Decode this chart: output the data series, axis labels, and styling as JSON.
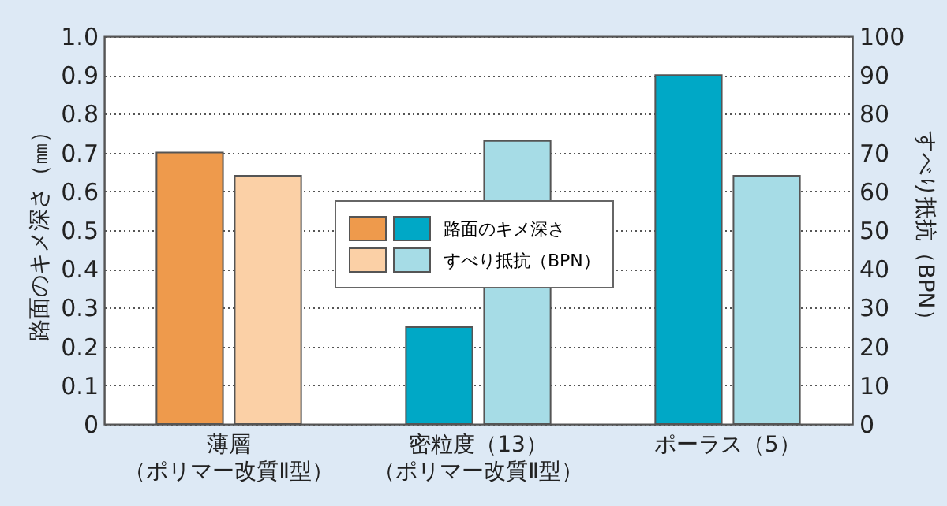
{
  "chart_data": {
    "type": "bar",
    "categories": [
      "薄層（ポリマー改質Ⅱ型）",
      "密粒度（13）（ポリマー改質Ⅱ型）",
      "ポーラス（5）"
    ],
    "ylabel": "路面のキメ深さ（㎜）",
    "y2label": "すべり抵抗（BPN）",
    "series": [
      {
        "name": "路面のキメ深さ",
        "colors": [
          "#ee9a4c",
          "#00a8c6",
          "#00a8c6"
        ],
        "values": [
          0.7,
          0.25,
          0.9
        ]
      },
      {
        "name": "すべり抵抗（BPN）",
        "axis": "y2",
        "colors": [
          "#fbd0a6",
          "#a6dce6",
          "#a6dce6"
        ],
        "values": [
          64,
          73,
          64
        ]
      }
    ],
    "ylim": [
      0,
      1.0
    ],
    "yticks": [
      0,
      {
        "value": 0.1,
        "label": "0.1"
      },
      {
        "value": 0.2,
        "label": "0.2"
      },
      {
        "value": 0.3,
        "label": "0.3"
      },
      {
        "value": 0.4,
        "label": "0.4"
      },
      {
        "value": 0.5,
        "label": "0.5"
      },
      {
        "value": 0.6,
        "label": "0.6"
      },
      {
        "value": 0.7,
        "label": "0.7"
      },
      {
        "value": 0.8,
        "label": "0.8"
      },
      {
        "value": 0.9,
        "label": "0.9"
      },
      {
        "value": 1.0,
        "label": "1.0"
      }
    ],
    "y2lim": [
      0,
      100
    ],
    "y2ticks": [
      0,
      10,
      20,
      30,
      40,
      50,
      60,
      70,
      80,
      90,
      100
    ],
    "grid": "y",
    "legend": "center"
  }
}
